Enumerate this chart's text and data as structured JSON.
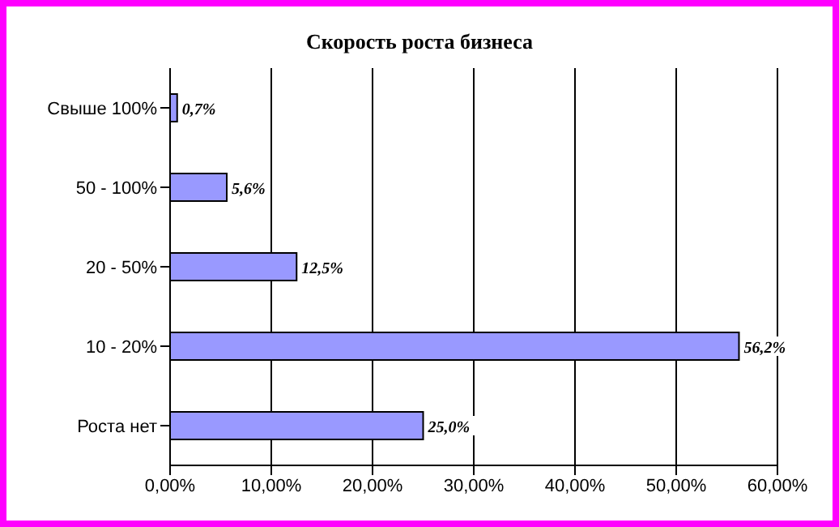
{
  "chart_data": {
    "type": "bar",
    "orientation": "horizontal",
    "title": "Скорость роста бизнеса",
    "categories": [
      "Свыше 100%",
      "50 - 100%",
      "20 - 50%",
      "10 - 20%",
      "Роста нет"
    ],
    "values": [
      0.7,
      5.6,
      12.5,
      56.2,
      25.0
    ],
    "value_labels": [
      "0,7%",
      "5,6%",
      "12,5%",
      "56,2%",
      "25,0%"
    ],
    "color": "#9999ff",
    "xlim": [
      0,
      60
    ],
    "xticks": [
      {
        "value": 0,
        "label": "0,00%"
      },
      {
        "value": 10,
        "label": "10,00%"
      },
      {
        "value": 20,
        "label": "20,00%"
      },
      {
        "value": 30,
        "label": "30,00%"
      },
      {
        "value": 40,
        "label": "40,00%"
      },
      {
        "value": 50,
        "label": "50,00%"
      },
      {
        "value": 60,
        "label": "60,00%"
      }
    ],
    "grid": "x",
    "legend": false
  }
}
